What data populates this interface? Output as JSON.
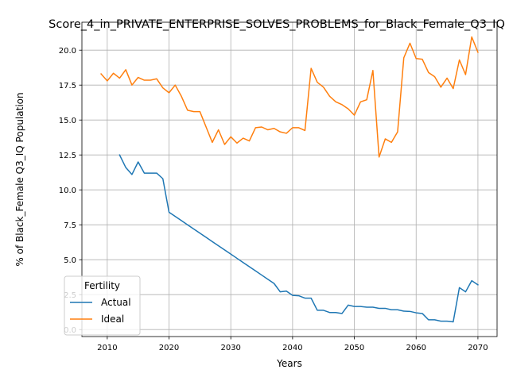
{
  "chart_data": {
    "type": "line",
    "title": "Score_4_in_PRIVATE_ENTERPRISE_SOLVES_PROBLEMS_for_Black_Female_Q3_IQ",
    "xlabel": "Years",
    "ylabel": "% of Black_Female Q3_IQ Population",
    "xlim": [
      2005.9,
      2073.1
    ],
    "ylim": [
      -0.5,
      22.0
    ],
    "x_ticks": [
      2010,
      2020,
      2030,
      2040,
      2050,
      2060,
      2070
    ],
    "x_tick_labels": [
      "2010",
      "2020",
      "2030",
      "2040",
      "2050",
      "2060",
      "2070"
    ],
    "y_ticks": [
      0,
      2.5,
      5,
      7.5,
      10,
      12.5,
      15,
      17.5,
      20
    ],
    "y_tick_labels": [
      "0.0",
      "2.5",
      "5.0",
      "7.5",
      "10.0",
      "12.5",
      "15.0",
      "17.5",
      "20.0"
    ],
    "grid": true,
    "legend": {
      "title": "Fertility",
      "placement": "lower-left"
    },
    "series": [
      {
        "name": "Actual",
        "color": "#1f77b4",
        "x": [
          2012,
          2013,
          2014,
          2015,
          2016,
          2017,
          2018,
          2019,
          2020,
          2021,
          2022,
          2023,
          2024,
          2025,
          2026,
          2027,
          2028,
          2029,
          2030,
          2031,
          2032,
          2033,
          2034,
          2035,
          2036,
          2037,
          2038,
          2039,
          2040,
          2041,
          2042,
          2043,
          2044,
          2045,
          2046,
          2047,
          2048,
          2049,
          2050,
          2051,
          2052,
          2053,
          2054,
          2055,
          2056,
          2057,
          2058,
          2059,
          2060,
          2061,
          2062,
          2063,
          2064,
          2065,
          2066,
          2067,
          2068,
          2069,
          2070
        ],
        "y": [
          12.5,
          11.6,
          11.1,
          12.0,
          11.2,
          11.2,
          11.2,
          10.8,
          8.4,
          8.1,
          7.8,
          7.5,
          7.2,
          6.9,
          6.6,
          6.3,
          6.0,
          5.7,
          5.4,
          5.1,
          4.8,
          4.5,
          4.2,
          3.9,
          3.6,
          3.3,
          2.7,
          2.75,
          2.45,
          2.42,
          2.25,
          2.25,
          1.38,
          1.38,
          1.22,
          1.22,
          1.15,
          1.75,
          1.65,
          1.65,
          1.6,
          1.6,
          1.52,
          1.52,
          1.42,
          1.42,
          1.32,
          1.3,
          1.2,
          1.15,
          0.7,
          0.7,
          0.6,
          0.6,
          0.55,
          3.0,
          2.7,
          3.5,
          3.2
        ]
      },
      {
        "name": "Ideal",
        "color": "#ff7f0e",
        "x": [
          2009,
          2010,
          2011,
          2012,
          2013,
          2014,
          2015,
          2016,
          2017,
          2018,
          2019,
          2020,
          2021,
          2022,
          2023,
          2024,
          2025,
          2026,
          2027,
          2028,
          2029,
          2030,
          2031,
          2032,
          2033,
          2034,
          2035,
          2036,
          2037,
          2038,
          2039,
          2040,
          2041,
          2042,
          2043,
          2044,
          2045,
          2046,
          2047,
          2048,
          2049,
          2050,
          2051,
          2052,
          2053,
          2054,
          2055,
          2056,
          2057,
          2058,
          2059,
          2060,
          2061,
          2062,
          2063,
          2064,
          2065,
          2066,
          2067,
          2068,
          2069,
          2070
        ],
        "y": [
          18.3,
          17.8,
          18.35,
          18.0,
          18.6,
          17.5,
          18.05,
          17.85,
          17.85,
          17.95,
          17.3,
          16.95,
          17.5,
          16.7,
          15.7,
          15.6,
          15.6,
          14.5,
          13.4,
          14.3,
          13.25,
          13.8,
          13.35,
          13.7,
          13.5,
          14.45,
          14.5,
          14.3,
          14.4,
          14.15,
          14.05,
          14.45,
          14.45,
          14.25,
          18.7,
          17.7,
          17.35,
          16.7,
          16.3,
          16.1,
          15.8,
          15.35,
          16.3,
          16.45,
          18.55,
          12.35,
          13.65,
          13.4,
          14.15,
          19.45,
          20.5,
          19.4,
          19.35,
          18.4,
          18.1,
          17.35,
          18.0,
          17.25,
          19.3,
          18.25,
          20.95,
          19.85
        ]
      }
    ]
  }
}
